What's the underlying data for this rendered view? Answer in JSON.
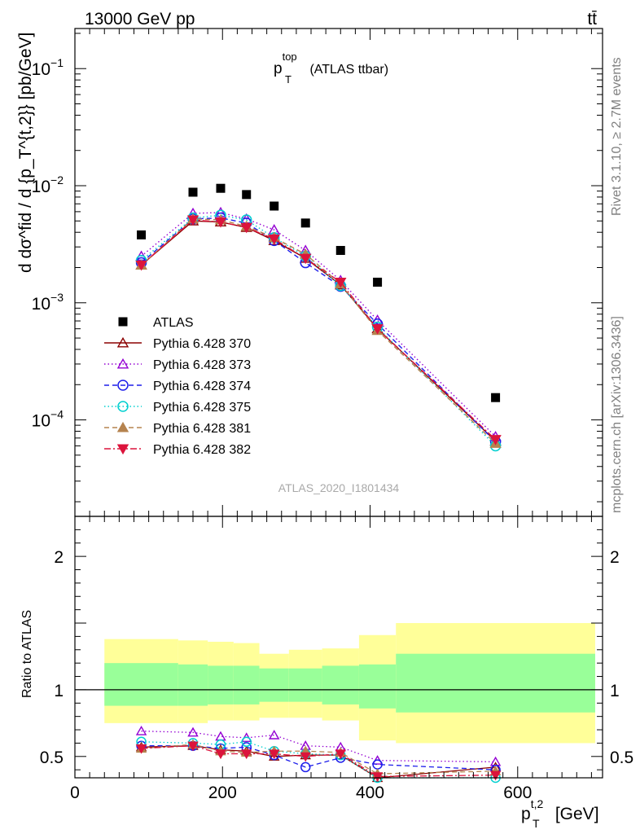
{
  "header": {
    "process": "13000 GeV pp",
    "channel": "tt̄",
    "rivet": "Rivet 3.1.10, ≥ 2.7M events",
    "mcplots": "mcplots.cern.ch [arXiv:1306.3436]",
    "analysis": "ATLAS_2020_I1801434"
  },
  "chart_data": [
    {
      "type": "scatter",
      "title": {
        "main": "p",
        "sup": "top",
        "sub": "T",
        "rest": " (ATLAS ttbar)"
      },
      "ylabel": "d dσ^fid / d {p_T^{t,2}} [pb/GeV]",
      "yscale": "log",
      "ylim": [
        1.5e-05,
        0.22
      ],
      "xlim": [
        0,
        715
      ],
      "yticks": [
        {
          "v": 0.1,
          "m": "10",
          "e": "−1"
        },
        {
          "v": 0.01,
          "m": "10",
          "e": "−2"
        },
        {
          "v": 0.001,
          "m": "10",
          "e": "−3"
        },
        {
          "v": 0.0001,
          "m": "10",
          "e": "−4"
        }
      ],
      "x": [
        90,
        160,
        197.5,
        232.5,
        270,
        312.5,
        360,
        410,
        570
      ],
      "data": {
        "name": "ATLAS",
        "values": [
          0.0038,
          0.0088,
          0.0095,
          0.0084,
          0.0067,
          0.0048,
          0.0028,
          0.0015,
          0.000155
        ]
      },
      "series": [
        {
          "name": "Pythia 6.428 370",
          "color": "#8b0000",
          "marker": "triangle-open",
          "dash": "",
          "values": [
            0.0021,
            0.005,
            0.0049,
            0.0044,
            0.0034,
            0.0024,
            0.00142,
            0.0006,
            6.6e-05
          ]
        },
        {
          "name": "Pythia 6.428 373",
          "color": "#9400d3",
          "marker": "triangle-open",
          "dash": "1.5,3",
          "values": [
            0.0025,
            0.0058,
            0.0059,
            0.0052,
            0.0042,
            0.0028,
            0.00155,
            0.00071,
            7.2e-05
          ]
        },
        {
          "name": "Pythia 6.428 374",
          "color": "#1e1eea",
          "marker": "circle-open",
          "dash": "6,4",
          "values": [
            0.0022,
            0.0052,
            0.0053,
            0.0048,
            0.0034,
            0.0022,
            0.00138,
            0.00066,
            6.5e-05
          ]
        },
        {
          "name": "Pythia 6.428 375",
          "color": "#00cfcf",
          "marker": "circle-open",
          "dash": "1.5,3",
          "values": [
            0.0023,
            0.0053,
            0.0056,
            0.0051,
            0.0036,
            0.0025,
            0.0014,
            0.00062,
            6e-05
          ]
        },
        {
          "name": "Pythia 6.428 381",
          "color": "#b5834f",
          "marker": "triangle-filled",
          "dash": "6,4",
          "values": [
            0.0021,
            0.0052,
            0.0051,
            0.0045,
            0.0036,
            0.0026,
            0.00145,
            0.00058,
            6.3e-05
          ]
        },
        {
          "name": "Pythia 6.428 382",
          "color": "#dc143c",
          "marker": "triangledown-filled",
          "dash": "8,3,2,3",
          "values": [
            0.0021,
            0.0051,
            0.0049,
            0.0044,
            0.0035,
            0.0024,
            0.0015,
            0.0006,
            6.8e-05
          ]
        }
      ]
    },
    {
      "type": "scatter",
      "ylabel": "Ratio to ATLAS",
      "xlabel": {
        "main": "p",
        "sup": "t,2",
        "sub": "T",
        "rest": " [GeV]"
      },
      "ylim": [
        0.34,
        2.3
      ],
      "yticks": [
        0.5,
        1,
        2
      ],
      "xticks": [
        0,
        200,
        400,
        600
      ],
      "bands": [
        {
          "x": [
            40,
            140
          ],
          "green": [
            0.88,
            1.2
          ],
          "yellow": [
            0.75,
            1.38
          ]
        },
        {
          "x": [
            140,
            180
          ],
          "green": [
            0.88,
            1.19
          ],
          "yellow": [
            0.75,
            1.37
          ]
        },
        {
          "x": [
            180,
            215
          ],
          "green": [
            0.89,
            1.18
          ],
          "yellow": [
            0.77,
            1.36
          ]
        },
        {
          "x": [
            215,
            250
          ],
          "green": [
            0.89,
            1.18
          ],
          "yellow": [
            0.77,
            1.35
          ]
        },
        {
          "x": [
            250,
            290
          ],
          "green": [
            0.91,
            1.16
          ],
          "yellow": [
            0.79,
            1.27
          ]
        },
        {
          "x": [
            290,
            335
          ],
          "green": [
            0.91,
            1.16
          ],
          "yellow": [
            0.79,
            1.3
          ]
        },
        {
          "x": [
            335,
            385
          ],
          "green": [
            0.89,
            1.18
          ],
          "yellow": [
            0.77,
            1.31
          ]
        },
        {
          "x": [
            385,
            435
          ],
          "green": [
            0.86,
            1.19
          ],
          "yellow": [
            0.62,
            1.41
          ]
        },
        {
          "x": [
            435,
            705
          ],
          "green": [
            0.83,
            1.27
          ],
          "yellow": [
            0.6,
            1.5
          ]
        }
      ],
      "series": [
        {
          "name": "Pythia 6.428 370",
          "values": [
            0.57,
            0.58,
            0.55,
            0.54,
            0.5,
            0.51,
            0.51,
            0.34,
            0.42
          ]
        },
        {
          "name": "Pythia 6.428 373",
          "values": [
            0.69,
            0.68,
            0.65,
            0.64,
            0.66,
            0.58,
            0.57,
            0.47,
            0.46
          ]
        },
        {
          "name": "Pythia 6.428 374",
          "values": [
            0.58,
            0.58,
            0.56,
            0.57,
            0.51,
            0.42,
            0.49,
            0.44,
            0.4
          ]
        },
        {
          "name": "Pythia 6.428 375",
          "values": [
            0.61,
            0.6,
            0.59,
            0.61,
            0.54,
            0.52,
            0.51,
            0.34,
            0.34
          ]
        },
        {
          "name": "Pythia 6.428 381",
          "values": [
            0.56,
            0.59,
            0.54,
            0.53,
            0.54,
            0.54,
            0.53,
            0.37,
            0.39
          ]
        },
        {
          "name": "Pythia 6.428 382",
          "values": [
            0.56,
            0.58,
            0.52,
            0.52,
            0.52,
            0.5,
            0.52,
            0.35,
            0.36
          ]
        }
      ]
    }
  ]
}
